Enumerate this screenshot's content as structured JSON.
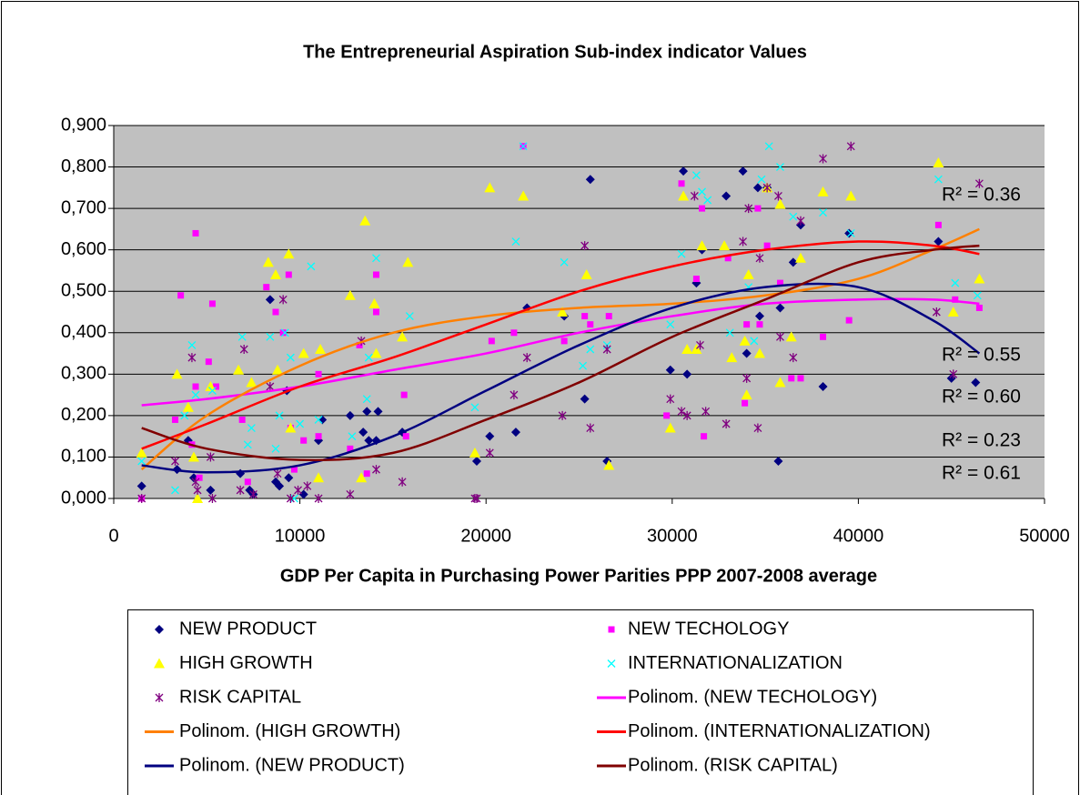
{
  "chart_data": {
    "type": "scatter",
    "title": "The Entrepreneurial Aspiration Sub-index indicator Values",
    "xlabel": "GDP Per Capita in Purchasing Power Parities PPP 2007-2008 average",
    "xlim": [
      0,
      50000
    ],
    "ylim": [
      0,
      0.9
    ],
    "xticks": [
      0,
      10000,
      20000,
      30000,
      40000,
      50000
    ],
    "yticks": [
      {
        "value": 0,
        "label": "0,000"
      },
      {
        "value": 0.1,
        "label": "0,100"
      },
      {
        "value": 0.2,
        "label": "0,200"
      },
      {
        "value": 0.3,
        "label": "0,300"
      },
      {
        "value": 0.4,
        "label": "0,400"
      },
      {
        "value": 0.5,
        "label": "0,500"
      },
      {
        "value": 0.6,
        "label": "0,600"
      },
      {
        "value": 0.7,
        "label": "0,700"
      },
      {
        "value": 0.8,
        "label": "0,800"
      },
      {
        "value": 0.9,
        "label": "0,900"
      }
    ],
    "grid": true,
    "series": [
      {
        "name": "NEW PRODUCT",
        "type": "scatter",
        "marker": "diamond",
        "color": "#000080",
        "x": [
          1500,
          3400,
          4000,
          4300,
          5200,
          6800,
          7300,
          7500,
          8400,
          8700,
          8900,
          9300,
          9400,
          10200,
          11000,
          11200,
          12700,
          13400,
          13600,
          13700,
          14100,
          14200,
          15500,
          19500,
          20200,
          21600,
          22200,
          24200,
          25300,
          25600,
          26500,
          29900,
          30600,
          30800,
          31300,
          31600,
          32900,
          33800,
          34000,
          34600,
          34700,
          35100,
          35700,
          35800,
          36500,
          36900,
          38100,
          39500,
          44300,
          45000,
          46300
        ],
        "values": [
          0.03,
          0.07,
          0.14,
          0.05,
          0.02,
          0.06,
          0.02,
          0.01,
          0.48,
          0.04,
          0.03,
          0.26,
          0.05,
          0.01,
          0.14,
          0.19,
          0.2,
          0.16,
          0.21,
          0.14,
          0.14,
          0.21,
          0.16,
          0.09,
          0.15,
          0.16,
          0.46,
          0.44,
          0.24,
          0.77,
          0.09,
          0.31,
          0.79,
          0.3,
          0.52,
          0.6,
          0.73,
          0.79,
          0.35,
          0.75,
          0.44,
          0.75,
          0.09,
          0.46,
          0.57,
          0.66,
          0.27,
          0.64,
          0.62,
          0.29,
          0.28
        ]
      },
      {
        "name": "NEW TECHOLOGY",
        "type": "scatter",
        "marker": "square",
        "color": "#ff00ff",
        "x": [
          1500,
          3300,
          3600,
          4200,
          4400,
          4400,
          4600,
          5100,
          5300,
          5500,
          6900,
          7200,
          8200,
          8700,
          9100,
          9400,
          9500,
          9700,
          10200,
          11000,
          11000,
          12700,
          13200,
          13600,
          14100,
          14100,
          15600,
          15700,
          20300,
          21500,
          22000,
          24200,
          25300,
          25600,
          26600,
          29700,
          30500,
          31300,
          31600,
          31700,
          33000,
          33900,
          34000,
          34600,
          34700,
          35100,
          35800,
          36400,
          36900,
          38100,
          39500,
          44300,
          45200,
          46500
        ],
        "values": [
          0,
          0.19,
          0.49,
          0.13,
          0.64,
          0.27,
          0.05,
          0.33,
          0.47,
          0.27,
          0.19,
          0.04,
          0.51,
          0.45,
          0.4,
          0.54,
          0.17,
          0.07,
          0.14,
          0.3,
          0.15,
          0.12,
          0.37,
          0.06,
          0.54,
          0.45,
          0.25,
          0.15,
          0.38,
          0.4,
          0.85,
          0.38,
          0.44,
          0.42,
          0.44,
          0.2,
          0.76,
          0.53,
          0.7,
          0.15,
          0.58,
          0.23,
          0.42,
          0.7,
          0.42,
          0.61,
          0.52,
          0.29,
          0.29,
          0.39,
          0.43,
          0.66,
          0.48,
          0.46
        ]
      },
      {
        "name": "HIGH GROWTH",
        "type": "scatter",
        "marker": "triangle",
        "color": "#ffff00",
        "x": [
          1500,
          3400,
          4000,
          4300,
          4500,
          5200,
          6700,
          7400,
          8300,
          8700,
          8800,
          9400,
          9500,
          10200,
          11100,
          11000,
          12700,
          13300,
          13500,
          14000,
          14100,
          15500,
          15800,
          19400,
          20200,
          22000,
          24100,
          25400,
          26600,
          29900,
          30600,
          30800,
          31300,
          31600,
          32800,
          33200,
          33900,
          34000,
          34100,
          34700,
          35100,
          35800,
          35800,
          36400,
          36900,
          38100,
          39600,
          44300,
          45100,
          46500
        ],
        "values": [
          0.11,
          0.3,
          0.22,
          0.1,
          0,
          0.27,
          0.31,
          0.28,
          0.57,
          0.54,
          0.31,
          0.59,
          0.17,
          0.35,
          0.36,
          0.05,
          0.49,
          0.05,
          0.67,
          0.47,
          0.35,
          0.39,
          0.57,
          0.11,
          0.75,
          0.73,
          0.45,
          0.54,
          0.08,
          0.17,
          0.73,
          0.36,
          0.36,
          0.61,
          0.61,
          0.34,
          0.38,
          0.25,
          0.54,
          0.35,
          0.75,
          0.71,
          0.28,
          0.39,
          0.58,
          0.74,
          0.73,
          0.81,
          0.45,
          0.53
        ]
      },
      {
        "name": "INTERNATIONALIZATION",
        "type": "scatter",
        "marker": "x",
        "color": "#00ffff",
        "x": [
          1500,
          3300,
          3800,
          4200,
          4400,
          5300,
          6900,
          7200,
          7400,
          8400,
          8700,
          8900,
          9200,
          9500,
          9700,
          10000,
          10600,
          11000,
          12800,
          13600,
          13700,
          14100,
          15900,
          19400,
          21600,
          22000,
          24200,
          25200,
          25600,
          26500,
          29900,
          30500,
          31300,
          31600,
          31900,
          33100,
          34100,
          34400,
          34800,
          35200,
          35800,
          36500,
          38100,
          39600,
          44300,
          45200,
          46400
        ],
        "values": [
          0.09,
          0.02,
          0.2,
          0.37,
          0.25,
          0.26,
          0.39,
          0.13,
          0.17,
          0.39,
          0.12,
          0.2,
          0.4,
          0.34,
          0,
          0.18,
          0.56,
          0.19,
          0.15,
          0.24,
          0.34,
          0.58,
          0.44,
          0.22,
          0.62,
          0.85,
          0.57,
          0.32,
          0.36,
          0.37,
          0.42,
          0.59,
          0.78,
          0.74,
          0.72,
          0.4,
          0.51,
          0.38,
          0.77,
          0.85,
          0.8,
          0.68,
          0.69,
          0.64,
          0.77,
          0.52,
          0.49
        ]
      },
      {
        "name": "RISK CAPITAL",
        "type": "scatter",
        "marker": "star",
        "color": "#800080",
        "x": [
          1500,
          3300,
          4200,
          4400,
          4500,
          5300,
          5200,
          6800,
          7000,
          7500,
          8400,
          8800,
          9100,
          9500,
          9900,
          10400,
          11000,
          12700,
          13300,
          14100,
          15500,
          19400,
          19500,
          20200,
          21500,
          22200,
          24100,
          25300,
          25600,
          26500,
          29900,
          30500,
          30800,
          31200,
          31500,
          31800,
          32900,
          33800,
          34000,
          34100,
          34600,
          34700,
          35100,
          35700,
          35800,
          36500,
          36900,
          38100,
          39600,
          44200,
          45100,
          46500
        ],
        "values": [
          0,
          0.09,
          0.34,
          0.04,
          0.02,
          0,
          0.1,
          0.02,
          0.36,
          0.01,
          0.27,
          0.06,
          0.48,
          0,
          0.02,
          0.03,
          0,
          0.01,
          0.38,
          0.07,
          0.04,
          0,
          0,
          0.11,
          0.25,
          0.34,
          0.2,
          0.61,
          0.17,
          0.36,
          0.24,
          0.21,
          0.2,
          0.73,
          0.37,
          0.21,
          0.18,
          0.62,
          0.29,
          0.7,
          0.17,
          0.58,
          0.75,
          0.73,
          0.39,
          0.34,
          0.67,
          0.82,
          0.85,
          0.45,
          0.3,
          0.76
        ]
      },
      {
        "name": "Polinom. (NEW TECHOLOGY)",
        "type": "line",
        "color": "#ff00ff",
        "x": [
          1500,
          5000,
          10000,
          15000,
          20000,
          25000,
          30000,
          35000,
          40000,
          44000,
          46500
        ],
        "values": [
          0.225,
          0.24,
          0.27,
          0.31,
          0.35,
          0.4,
          0.44,
          0.47,
          0.48,
          0.48,
          0.47
        ]
      },
      {
        "name": "Polinom. (HIGH GROWTH)",
        "type": "line",
        "color": "#ff8000",
        "x": [
          1500,
          5000,
          10000,
          15000,
          20000,
          25000,
          30000,
          35000,
          40000,
          44000,
          46500
        ],
        "values": [
          0.07,
          0.2,
          0.32,
          0.4,
          0.44,
          0.46,
          0.47,
          0.49,
          0.53,
          0.6,
          0.65
        ]
      },
      {
        "name": "Polinom. (INTERNATIONALIZATION)",
        "type": "line",
        "color": "#ff0000",
        "x": [
          1500,
          5000,
          10000,
          15000,
          20000,
          25000,
          30000,
          35000,
          40000,
          44000,
          46500
        ],
        "values": [
          0.12,
          0.18,
          0.27,
          0.34,
          0.42,
          0.5,
          0.56,
          0.6,
          0.62,
          0.61,
          0.59
        ]
      },
      {
        "name": "Polinom. (NEW PRODUCT)",
        "type": "line",
        "color": "#000080",
        "x": [
          1500,
          5000,
          10000,
          15000,
          20000,
          25000,
          30000,
          35000,
          40000,
          44000,
          46500
        ],
        "values": [
          0.08,
          0.063,
          0.08,
          0.15,
          0.26,
          0.37,
          0.46,
          0.51,
          0.51,
          0.43,
          0.35
        ]
      },
      {
        "name": "Polinom. (RISK CAPITAL)",
        "type": "line",
        "color": "#800000",
        "x": [
          1500,
          5000,
          10000,
          15000,
          20000,
          25000,
          30000,
          35000,
          40000,
          44000,
          46500
        ],
        "values": [
          0.17,
          0.12,
          0.093,
          0.11,
          0.19,
          0.28,
          0.39,
          0.48,
          0.57,
          0.6,
          0.61
        ]
      }
    ],
    "annotations": [
      {
        "text": "R² = 0.36",
        "color": "#ff8000"
      },
      {
        "text": "R² = 0.55",
        "color": "#800000"
      },
      {
        "text": "R² = 0.60",
        "color": "#ff0000"
      },
      {
        "text": "R² = 0.23",
        "color": "#ff00ff"
      },
      {
        "text": "R² = 0.61",
        "color": "#000080"
      }
    ]
  }
}
